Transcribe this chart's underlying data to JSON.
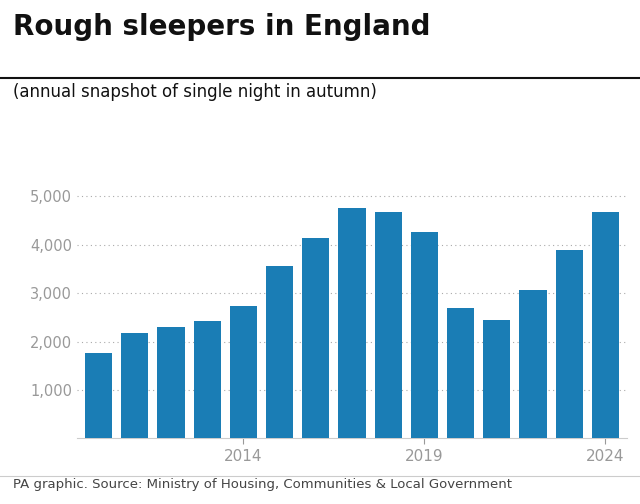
{
  "title": "Rough sleepers in England",
  "subtitle": "(annual snapshot of single night in autumn)",
  "footer": "PA graphic. Source: Ministry of Housing, Communities & Local Government",
  "years": [
    2010,
    2011,
    2012,
    2013,
    2014,
    2015,
    2016,
    2017,
    2018,
    2019,
    2020,
    2021,
    2022,
    2023,
    2024
  ],
  "values": [
    1768,
    2181,
    2309,
    2414,
    2744,
    3569,
    4134,
    4751,
    4677,
    4266,
    2688,
    2440,
    3069,
    3898,
    4667
  ],
  "bar_color": "#1a7db5",
  "background_color": "#ffffff",
  "ylim": [
    0,
    5200
  ],
  "yticks": [
    1000,
    2000,
    3000,
    4000,
    5000
  ],
  "xtick_positions": [
    2014,
    2019,
    2024
  ],
  "grid_color": "#aaaaaa",
  "title_fontsize": 20,
  "subtitle_fontsize": 12,
  "footer_fontsize": 9.5,
  "tick_label_color": "#999999",
  "title_color": "#111111",
  "footer_color": "#444444",
  "divider_color": "#111111",
  "bottom_spine_color": "#cccccc"
}
